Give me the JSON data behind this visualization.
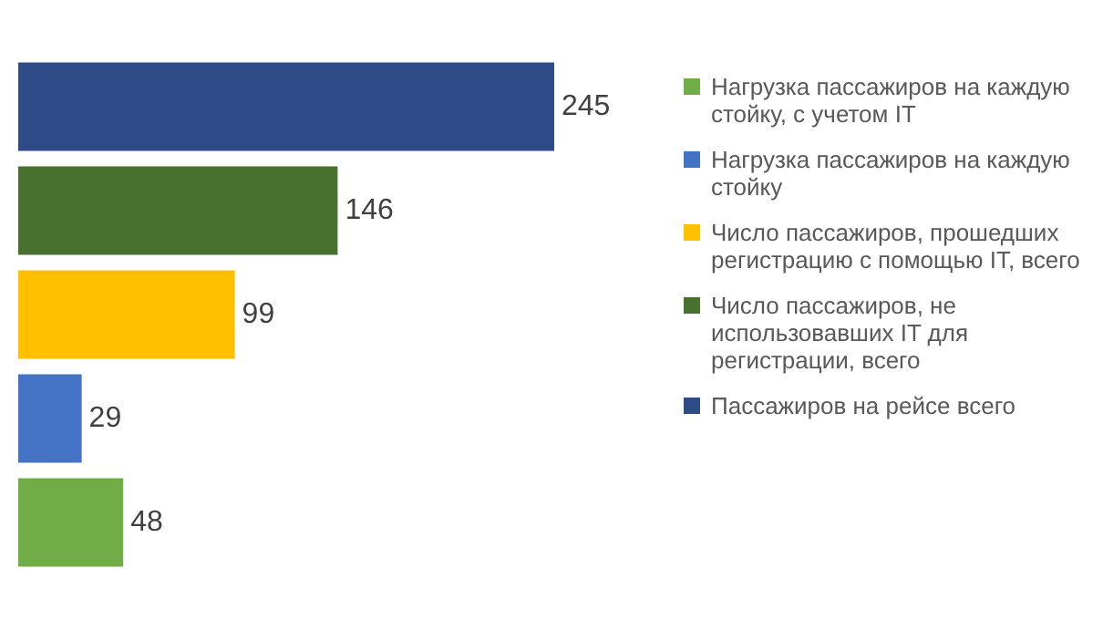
{
  "chart_data": {
    "type": "bar",
    "orientation": "horizontal",
    "stacked": true,
    "data_labels": true,
    "legend": "right",
    "categories": [
      null,
      null,
      null,
      null,
      null
    ],
    "series": [
      {
        "name": "Пассажиров на рейсе всего",
        "color": "#2e4a87",
        "values": [
          245,
          null,
          null,
          null,
          null
        ]
      },
      {
        "name": "Число пассажиров, не использовавших IT для регистрации, всего",
        "color": "#48702f",
        "values": [
          null,
          146,
          null,
          null,
          null
        ]
      },
      {
        "name": "Число пассажиров, прошедших регистрацию с помощью IT, всего",
        "color": "#ffc000",
        "values": [
          null,
          null,
          99,
          null,
          null
        ]
      },
      {
        "name": "Нагрузка пассажиров на каждую стойку",
        "color": "#4472c4",
        "values": [
          null,
          null,
          null,
          29,
          null
        ]
      },
      {
        "name": "Нагрузка пассажиров на каждую стойку, с учетом IT",
        "color": "#70ad47",
        "values": [
          null,
          null,
          null,
          null,
          48
        ]
      }
    ]
  }
}
